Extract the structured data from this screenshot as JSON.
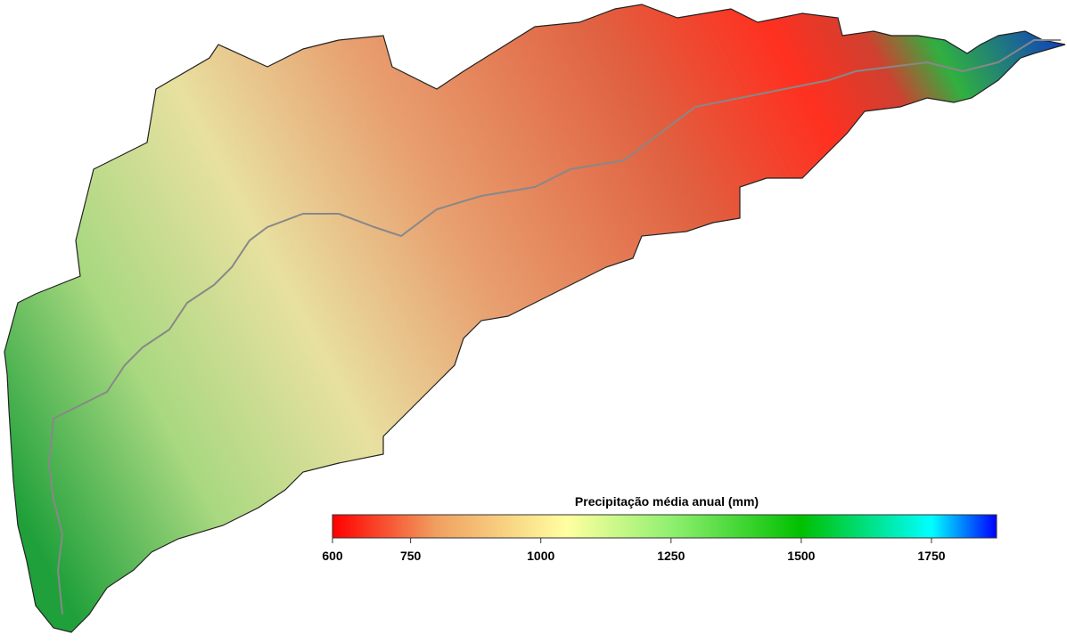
{
  "legend": {
    "title": "Precipitação média anual (mm)",
    "range": [
      600,
      1875
    ],
    "ticks": [
      600,
      750,
      1000,
      1250,
      1500,
      1750
    ],
    "stops": [
      {
        "value": 600,
        "color": "#ff0000"
      },
      {
        "value": 800,
        "color": "#f0a060"
      },
      {
        "value": 1050,
        "color": "#ffffa0"
      },
      {
        "value": 1250,
        "color": "#90f070"
      },
      {
        "value": 1500,
        "color": "#00c000"
      },
      {
        "value": 1750,
        "color": "#00ffff"
      },
      {
        "value": 1875,
        "color": "#0000ff"
      }
    ]
  }
}
